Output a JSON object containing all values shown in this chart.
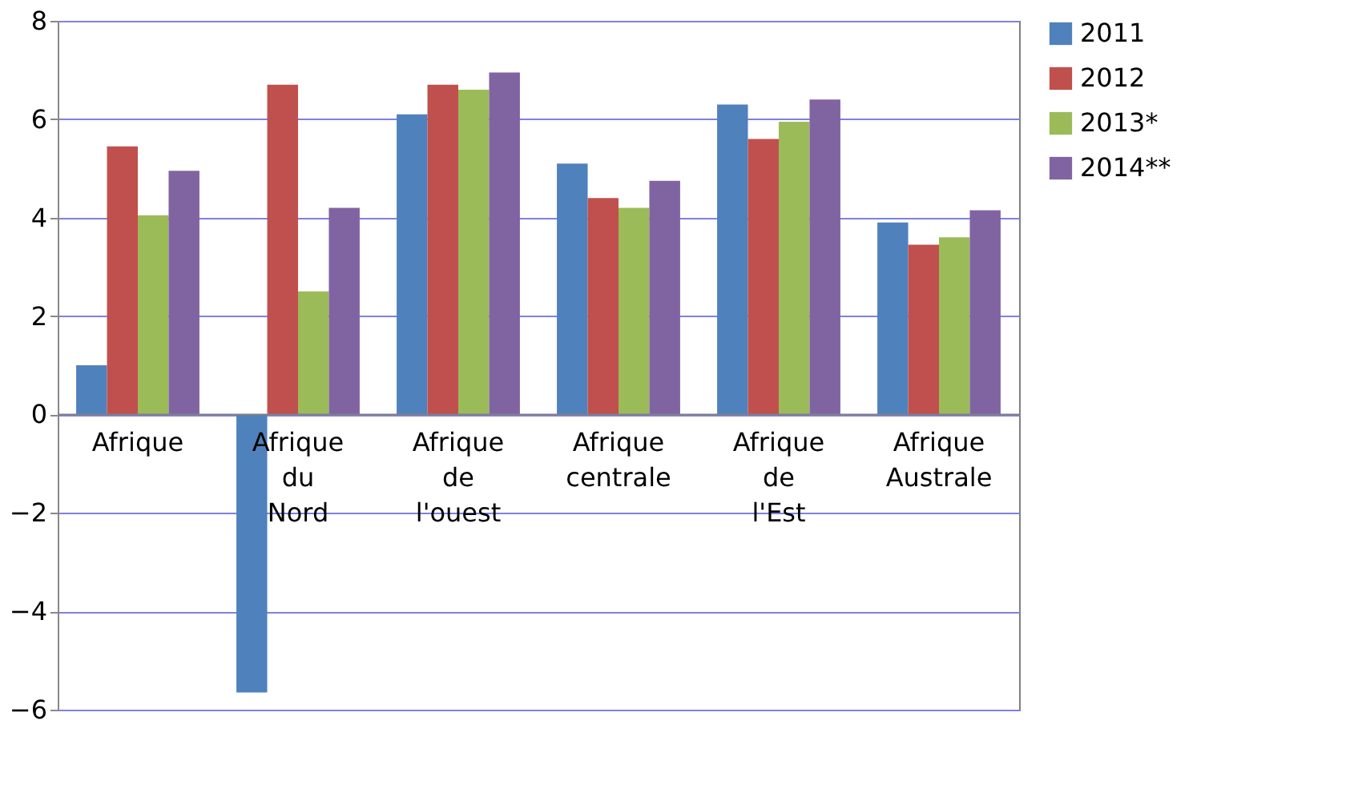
{
  "chart_data": {
    "type": "bar",
    "categories": [
      "Afrique",
      "Afrique du Nord",
      "Afrique de l'ouest",
      "Afrique centrale",
      "Afrique de l'Est",
      "Afrique Australe"
    ],
    "series": [
      {
        "name": "2011",
        "color": "#4f81bd",
        "values": [
          1.0,
          -5.65,
          6.1,
          5.1,
          6.3,
          3.9
        ]
      },
      {
        "name": "2012",
        "color": "#c0504d",
        "values": [
          5.45,
          6.7,
          6.7,
          4.4,
          5.6,
          3.45
        ]
      },
      {
        "name": "2013*",
        "color": "#9bbb59",
        "values": [
          4.05,
          2.5,
          6.6,
          4.2,
          5.95,
          3.6
        ]
      },
      {
        "name": "2014**",
        "color": "#8064a2",
        "values": [
          4.95,
          4.2,
          6.95,
          4.75,
          6.4,
          4.15
        ]
      }
    ],
    "ylim": [
      -6,
      8
    ],
    "yticks": [
      -6,
      -4,
      -2,
      0,
      2,
      4,
      6,
      8
    ],
    "grid": "y",
    "legend": "right"
  }
}
